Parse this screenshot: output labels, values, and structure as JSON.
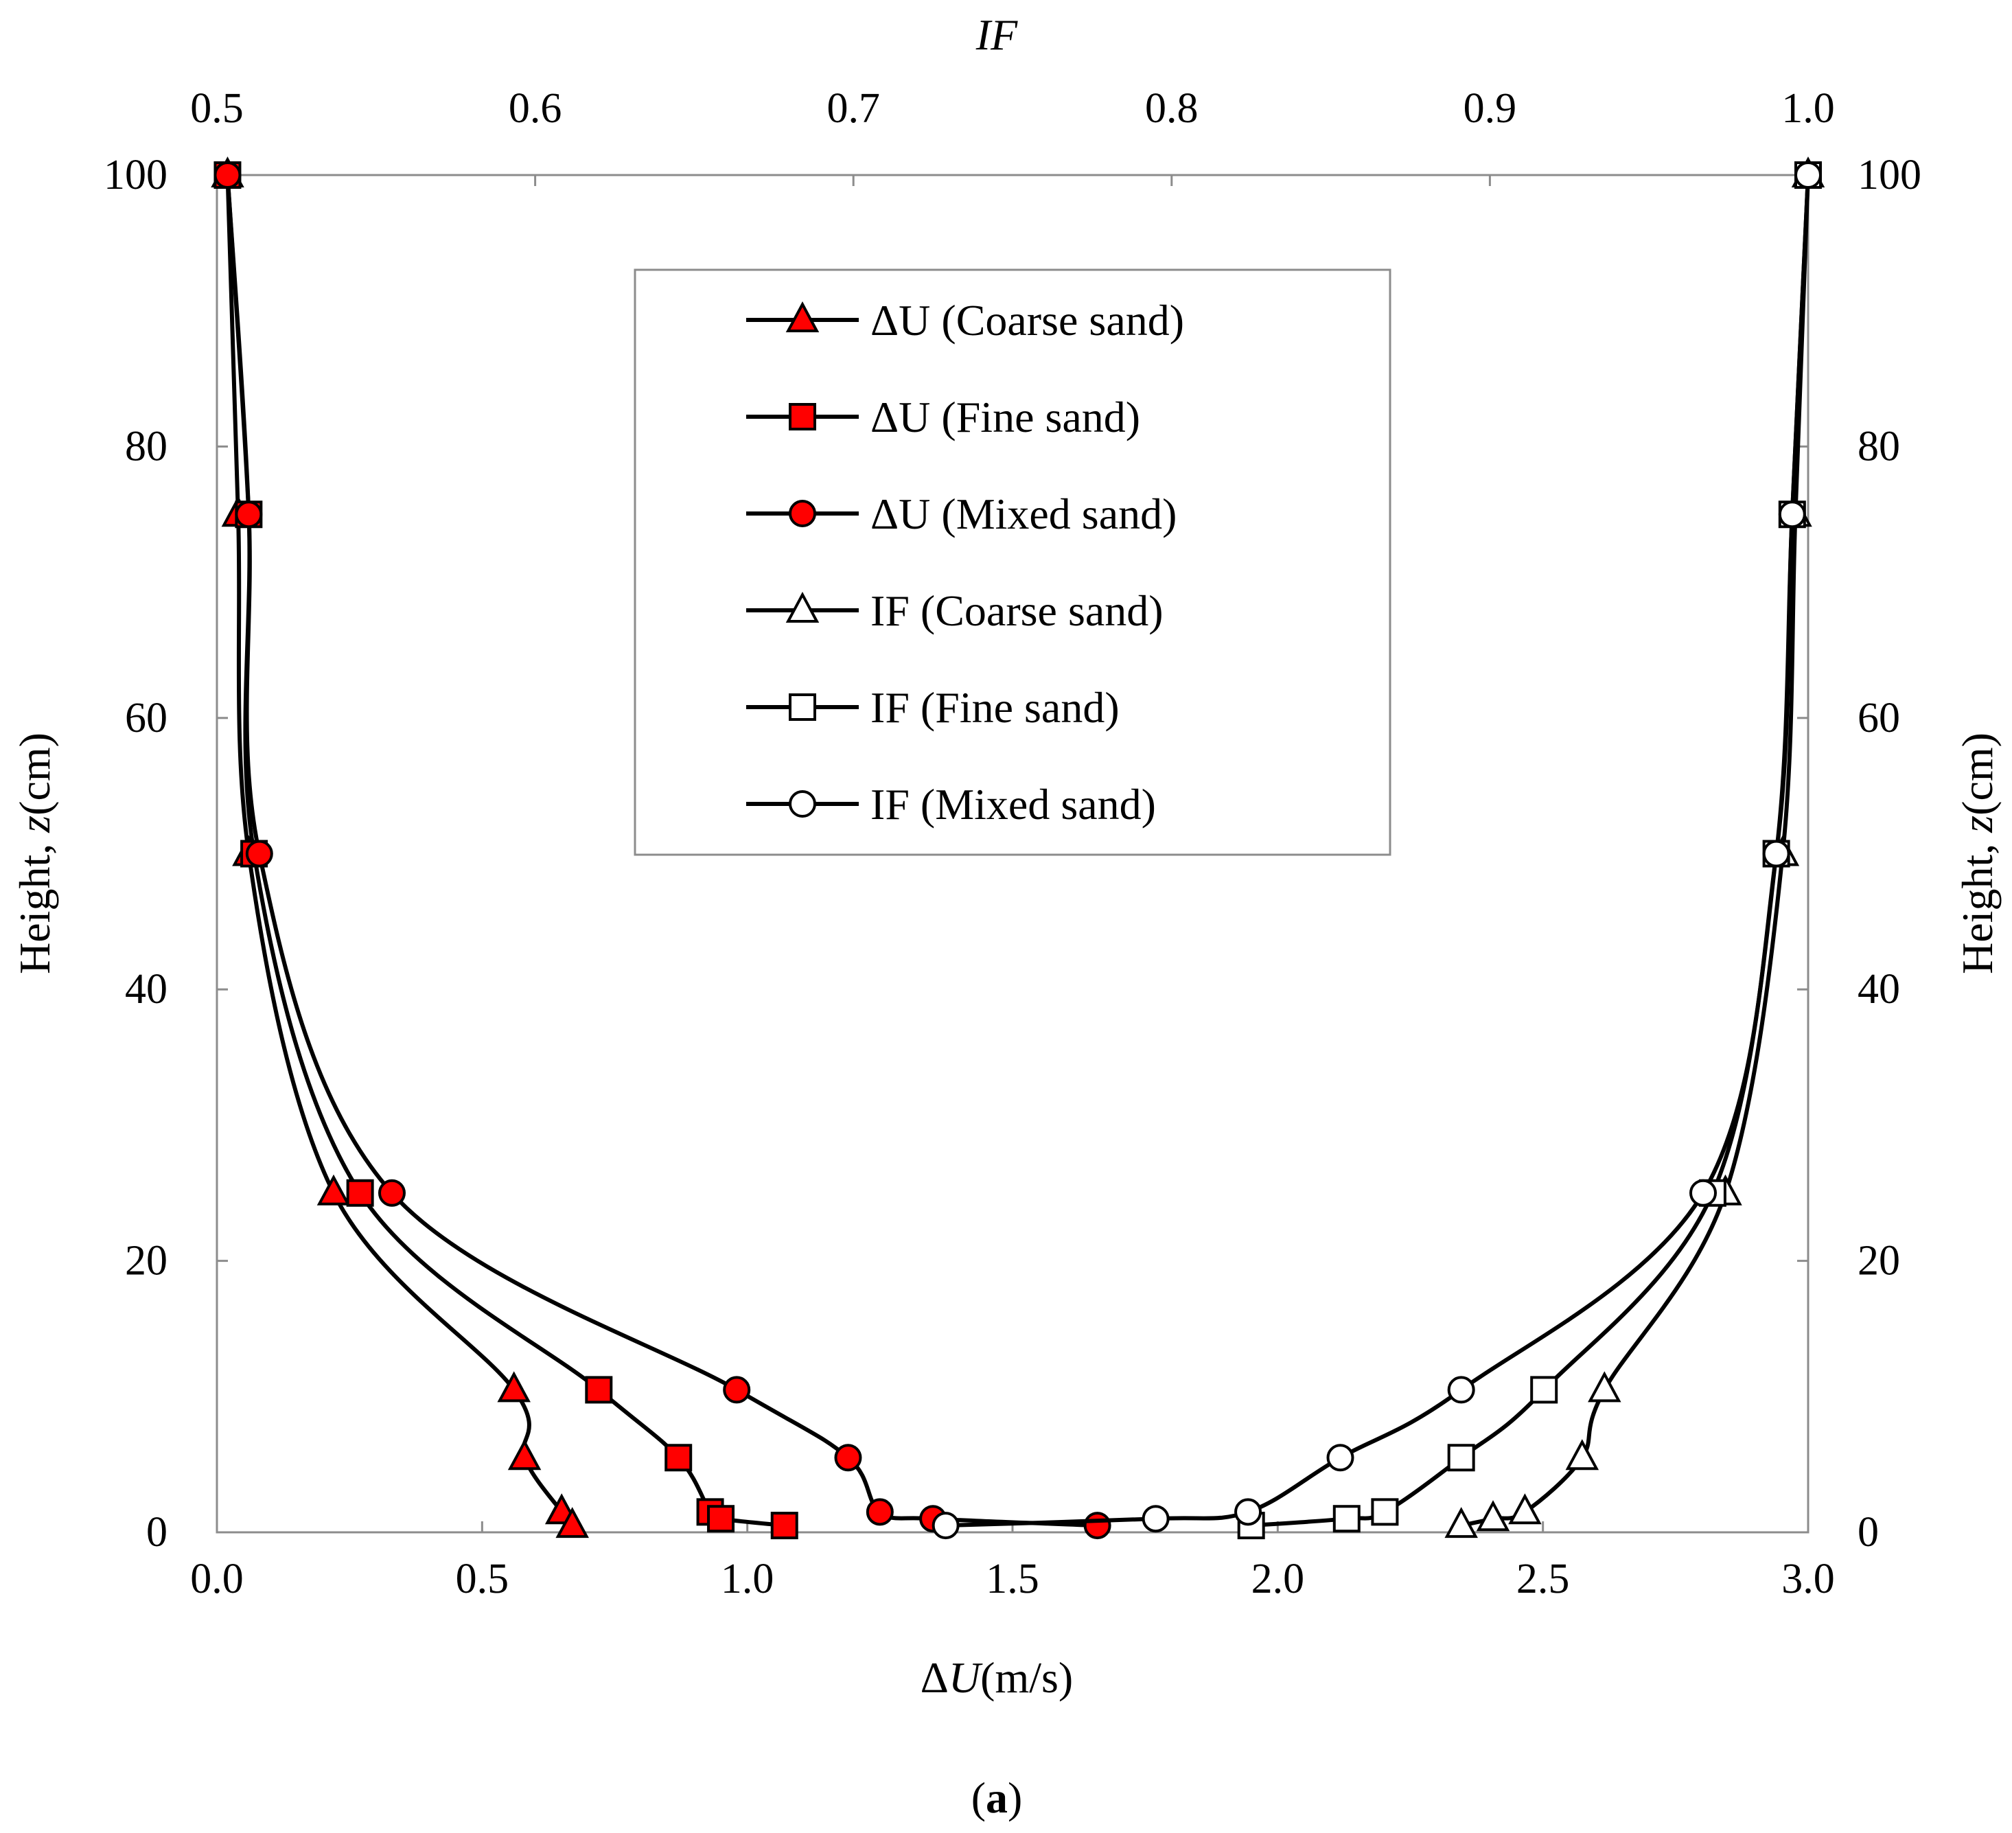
{
  "chart_data": {
    "type": "line",
    "caption": {
      "open": "(",
      "letter": "a",
      "close": ")"
    },
    "axes": {
      "bottom": {
        "label_prefix": "Δ",
        "label_var": "U",
        "label_unit": "(m/s)",
        "range": [
          0,
          3.0
        ],
        "ticks": [
          0,
          0.5,
          1.0,
          1.5,
          2.0,
          2.5,
          3.0
        ],
        "tick_labels": [
          "0.0",
          "0.5",
          "1.0",
          "1.5",
          "2.0",
          "2.5",
          "3.0"
        ]
      },
      "top": {
        "label": "IF",
        "range": [
          0.5,
          1.0
        ],
        "ticks": [
          0.5,
          0.6,
          0.7,
          0.8,
          0.9,
          1.0
        ],
        "tick_labels": [
          "0.5",
          "0.6",
          "0.7",
          "0.8",
          "0.9",
          "1.0"
        ]
      },
      "left": {
        "label_prefix": "Height, ",
        "label_var": "z",
        "label_unit": "(cm)",
        "range": [
          0,
          100
        ],
        "ticks": [
          0,
          20,
          40,
          60,
          80,
          100
        ],
        "tick_labels": [
          "0",
          "20",
          "40",
          "60",
          "80",
          "100"
        ]
      },
      "right": {
        "label_prefix": "Height, ",
        "label_var": "z",
        "label_unit": "(cm)",
        "range": [
          0,
          100
        ],
        "ticks": [
          0,
          20,
          40,
          60,
          80,
          100
        ],
        "tick_labels": [
          "0",
          "20",
          "40",
          "60",
          "80",
          "100"
        ]
      }
    },
    "legend_position": "top-center",
    "series": [
      {
        "name": "ΔU (Coarse sand)",
        "axis": "bottom",
        "marker": "triangle",
        "fill": "#ff0000",
        "points": [
          [
            0.02,
            100
          ],
          [
            0.04,
            75
          ],
          [
            0.06,
            50
          ],
          [
            0.22,
            25
          ],
          [
            0.56,
            10.5
          ],
          [
            0.58,
            5.5
          ],
          [
            0.65,
            1.5
          ],
          [
            0.67,
            0.5
          ]
        ]
      },
      {
        "name": "ΔU (Fine sand)",
        "axis": "bottom",
        "marker": "square",
        "fill": "#ff0000",
        "points": [
          [
            0.02,
            100
          ],
          [
            0.06,
            75
          ],
          [
            0.07,
            50
          ],
          [
            0.27,
            25
          ],
          [
            0.72,
            10.5
          ],
          [
            0.87,
            5.5
          ],
          [
            0.93,
            1.5
          ],
          [
            0.95,
            1
          ],
          [
            1.07,
            0.5
          ]
        ]
      },
      {
        "name": "ΔU (Mixed sand)",
        "axis": "bottom",
        "marker": "circle",
        "fill": "#ff0000",
        "points": [
          [
            0.02,
            100
          ],
          [
            0.06,
            75
          ],
          [
            0.08,
            50
          ],
          [
            0.33,
            25
          ],
          [
            0.98,
            10.5
          ],
          [
            1.19,
            5.5
          ],
          [
            1.25,
            1.5
          ],
          [
            1.35,
            1
          ],
          [
            1.66,
            0.5
          ]
        ]
      },
      {
        "name": "IF (Coarse sand)",
        "axis": "top",
        "marker": "triangle",
        "fill": "#ffffff",
        "points": [
          [
            1.0,
            100
          ],
          [
            0.996,
            75
          ],
          [
            0.992,
            50
          ],
          [
            0.974,
            25
          ],
          [
            0.936,
            10.5
          ],
          [
            0.929,
            5.5
          ],
          [
            0.911,
            1.5
          ],
          [
            0.901,
            1
          ],
          [
            0.891,
            0.5
          ]
        ]
      },
      {
        "name": "IF (Fine sand)",
        "axis": "top",
        "marker": "square",
        "fill": "#ffffff",
        "points": [
          [
            1.0,
            100
          ],
          [
            0.995,
            75
          ],
          [
            0.99,
            50
          ],
          [
            0.97,
            25
          ],
          [
            0.917,
            10.5
          ],
          [
            0.891,
            5.5
          ],
          [
            0.867,
            1.5
          ],
          [
            0.855,
            1
          ],
          [
            0.825,
            0.5
          ]
        ]
      },
      {
        "name": "IF (Mixed sand)",
        "axis": "top",
        "marker": "circle",
        "fill": "#ffffff",
        "points": [
          [
            1.0,
            100
          ],
          [
            0.995,
            75
          ],
          [
            0.99,
            50
          ],
          [
            0.967,
            25
          ],
          [
            0.891,
            10.5
          ],
          [
            0.853,
            5.5
          ],
          [
            0.824,
            1.5
          ],
          [
            0.795,
            1
          ],
          [
            0.729,
            0.5
          ]
        ]
      }
    ]
  }
}
